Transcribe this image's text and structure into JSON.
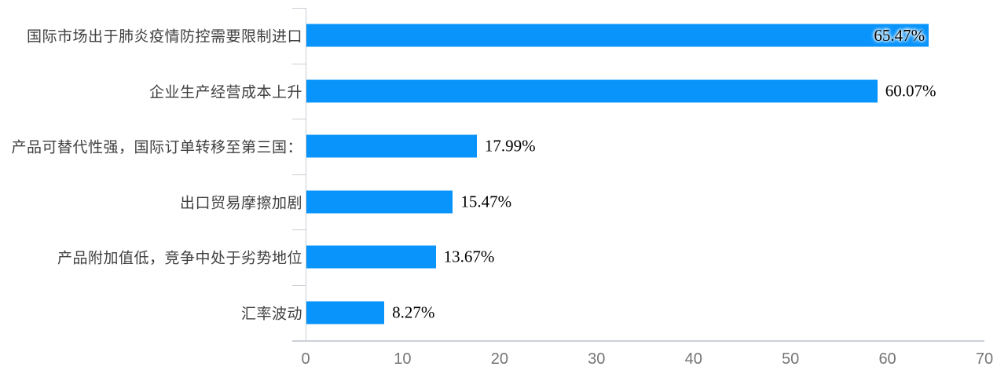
{
  "chart_data": {
    "type": "bar",
    "orientation": "horizontal",
    "title": "",
    "xlabel": "",
    "ylabel": "",
    "grid": false,
    "legend": false,
    "categories": [
      "国际市场出于肺炎疫情防控需要限制进口",
      "企业生产经营成本上升",
      "产品可替代性强，国际订单转移至第三国：",
      "出口贸易摩擦加剧",
      "产品附加值低，竞争中处于劣势地位",
      "汇率波动"
    ],
    "values": [
      65.47,
      60.07,
      17.99,
      15.47,
      13.67,
      8.27
    ],
    "value_labels": [
      "65.47%",
      "60.07%",
      "17.99%",
      "15.47%",
      "13.67%",
      "8.27%"
    ],
    "label_inside": [
      true,
      false,
      false,
      false,
      false,
      false
    ],
    "xlim": [
      0,
      70
    ],
    "x_ticks": [
      "0",
      "10",
      "20",
      "30",
      "40",
      "50",
      "60",
      "70"
    ],
    "colors": {
      "bar": "#0994fb",
      "axis": "#c9cdd4",
      "category_label": "#404040",
      "tick_label": "#757575",
      "value_label": "#000000"
    }
  }
}
